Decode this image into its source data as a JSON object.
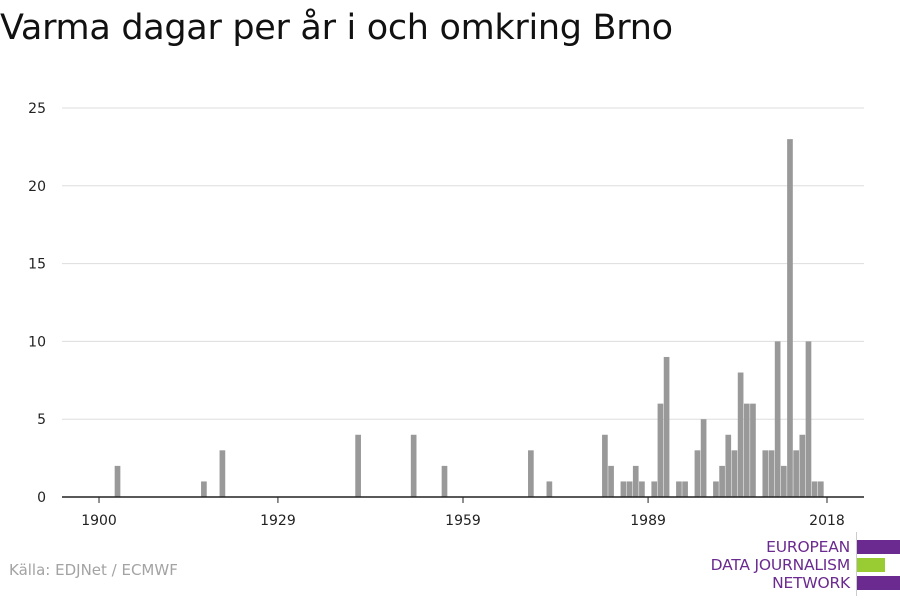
{
  "title": "Varma dagar per år i och omkring Brno",
  "source": "Källa: EDJNet / ECMWF",
  "logo": {
    "lines": [
      "EUROPEAN",
      "DATA JOURNALISM",
      "NETWORK"
    ],
    "colors": {
      "purple": "#6b2a8f",
      "green": "#99cc33"
    }
  },
  "chart_data": {
    "type": "bar",
    "title": "Varma dagar per år i och omkring Brno",
    "xlabel": "",
    "ylabel": "",
    "x_ticks": [
      1900,
      1929,
      1959,
      1989,
      2018
    ],
    "y_ticks": [
      0,
      5,
      10,
      15,
      20,
      25
    ],
    "xlim": [
      1894,
      2024
    ],
    "ylim": [
      0,
      25
    ],
    "grid": true,
    "bar_color": "#999999",
    "x": [
      1903,
      1917,
      1920,
      1942,
      1951,
      1956,
      1970,
      1973,
      1982,
      1983,
      1985,
      1986,
      1987,
      1988,
      1990,
      1991,
      1992,
      1994,
      1995,
      1997,
      1998,
      2000,
      2001,
      2002,
      2003,
      2004,
      2005,
      2006,
      2008,
      2009,
      2010,
      2011,
      2012,
      2013,
      2014,
      2015,
      2016,
      2017
    ],
    "values": [
      2,
      1,
      3,
      4,
      4,
      2,
      3,
      1,
      4,
      2,
      1,
      1,
      2,
      1,
      1,
      6,
      9,
      1,
      1,
      3,
      5,
      1,
      2,
      4,
      3,
      8,
      6,
      6,
      3,
      3,
      10,
      2,
      23,
      3,
      4,
      10,
      1,
      1
    ]
  }
}
